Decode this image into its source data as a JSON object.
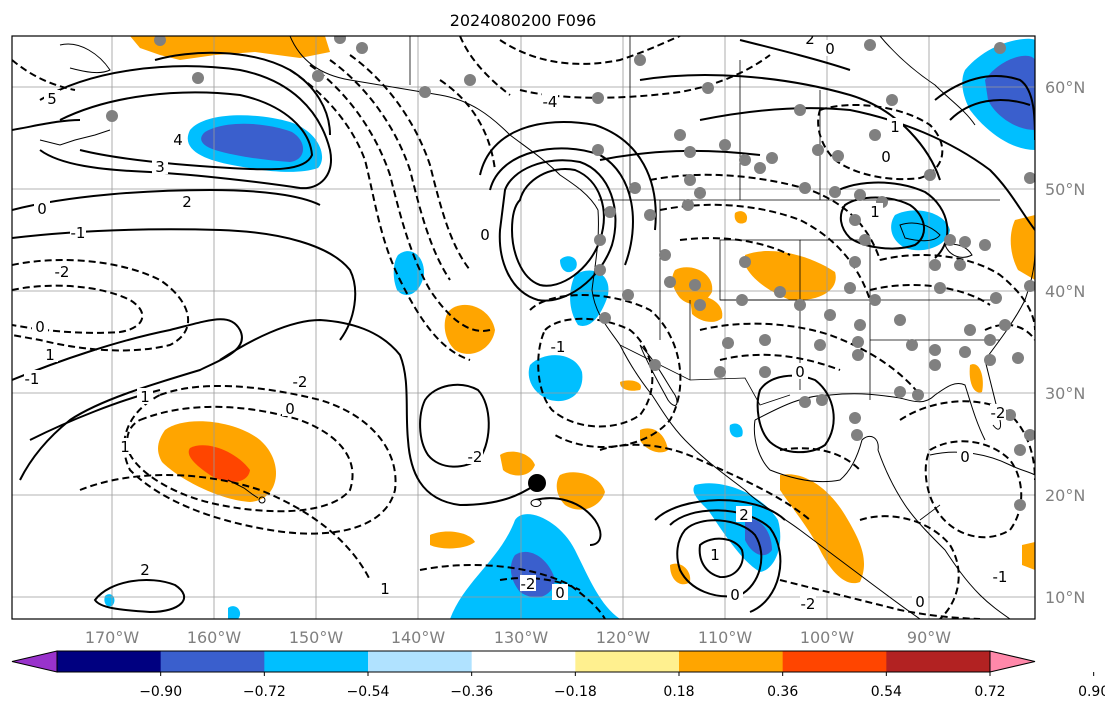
{
  "title": "2024080200 F096",
  "map": {
    "latitude_labels": [
      "60°N",
      "50°N",
      "40°N",
      "30°N",
      "20°N",
      "10°N"
    ],
    "longitude_labels": [
      "170°W",
      "160°W",
      "150°W",
      "140°W",
      "130°W",
      "120°W",
      "110°W",
      "100°W",
      "90°W"
    ],
    "contour_labels": [
      "5",
      "4",
      "3",
      "2",
      "0",
      "-1",
      "-2",
      "0",
      "1",
      "-1",
      "-2",
      "0",
      "1",
      "1",
      "0",
      "-1",
      "-2",
      "2",
      "1",
      "0",
      "-2",
      "1",
      "0",
      "1",
      "2",
      "0",
      "0",
      "2",
      "1",
      "0",
      "-2",
      "0",
      "-1",
      "0",
      "-2",
      "-4"
    ],
    "marker": "black-dot"
  },
  "colorbar": {
    "ticks": [
      "−0.90",
      "−0.72",
      "−0.54",
      "−0.36",
      "−0.18",
      "0.18",
      "0.36",
      "0.54",
      "0.72",
      "0.90"
    ],
    "colors": [
      "#9932cc",
      "#000080",
      "#3a5fcd",
      "#00bfff",
      "#b0e2ff",
      "#ffffff",
      "#fff08f",
      "#ffa500",
      "#ff4500",
      "#b22222",
      "#ff88aa"
    ]
  },
  "colors": {
    "grid": "#9a9a9a",
    "station_dots": "#808080"
  }
}
